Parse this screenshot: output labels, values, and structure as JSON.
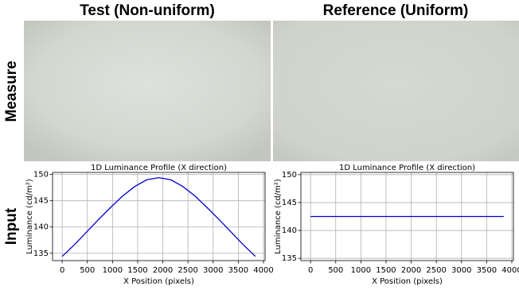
{
  "column_titles": [
    "Test (Non-uniform)",
    "Reference (Uniform)"
  ],
  "row_labels": [
    "Measure",
    "Input"
  ],
  "chart_data": [
    {
      "type": "line",
      "title": "1D Luminance Profile (X direction)",
      "x_label": "X Position (pixels)",
      "y_label": "Luminance (cd/m²)",
      "x": [
        0,
        240,
        480,
        720,
        960,
        1200,
        1440,
        1680,
        1920,
        2160,
        2400,
        2640,
        2880,
        3120,
        3360,
        3600,
        3840
      ],
      "series": [
        {
          "color": "#0000cc",
          "values": [
            134.4,
            136.6,
            139.0,
            141.4,
            143.7,
            145.9,
            147.7,
            149.0,
            149.4,
            149.0,
            147.7,
            145.9,
            143.7,
            141.4,
            139.0,
            136.6,
            134.4
          ]
        }
      ],
      "xlim": [
        -192,
        4032
      ],
      "xticks": [
        0,
        500,
        1000,
        1500,
        2000,
        2500,
        3000,
        3500,
        4000
      ],
      "ylim": [
        133.6,
        150.4
      ],
      "yticks": [
        135,
        140,
        145,
        150
      ],
      "grid": true
    },
    {
      "type": "line",
      "title": "1D Luminance Profile (X direction)",
      "x_label": "X Position (pixels)",
      "y_label": "Luminance (cd/m²)",
      "x": [
        0,
        3840
      ],
      "series": [
        {
          "color": "#0000cc",
          "values": [
            142.5,
            142.5
          ]
        }
      ],
      "xlim": [
        -192,
        4032
      ],
      "xticks": [
        0,
        500,
        1000,
        1500,
        2000,
        2500,
        3000,
        3500,
        4000
      ],
      "ylim": [
        134.6,
        150.4
      ],
      "yticks": [
        135,
        140,
        145,
        150
      ],
      "grid": true
    }
  ]
}
